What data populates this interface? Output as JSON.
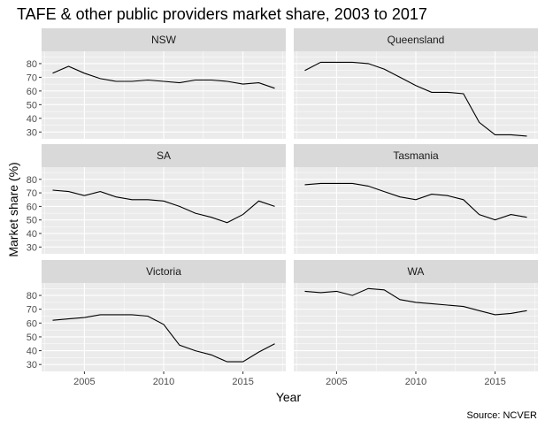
{
  "chart_data": {
    "type": "line",
    "title": "TAFE & other public providers market share, 2003 to 2017",
    "xlabel": "Year",
    "ylabel": "Market share (%)",
    "caption": "Source: NCVER",
    "xlim": [
      2002.3,
      2017.7
    ],
    "ylim": [
      25,
      89
    ],
    "x_ticks": [
      2005,
      2010,
      2015
    ],
    "y_ticks": [
      30,
      40,
      50,
      60,
      70,
      80
    ],
    "grid": true,
    "x": [
      2003,
      2004,
      2005,
      2006,
      2007,
      2008,
      2009,
      2010,
      2011,
      2012,
      2013,
      2014,
      2015,
      2016,
      2017
    ],
    "series": [
      {
        "name": "NSW",
        "values": [
          73,
          78,
          73,
          69,
          67,
          67,
          68,
          67,
          66,
          68,
          68,
          67,
          65,
          66,
          62
        ]
      },
      {
        "name": "Queensland",
        "values": [
          75,
          81,
          81,
          81,
          80,
          76,
          70,
          64,
          59,
          59,
          58,
          37,
          28,
          28,
          27
        ]
      },
      {
        "name": "SA",
        "values": [
          72,
          71,
          68,
          71,
          67,
          65,
          65,
          64,
          60,
          55,
          52,
          48,
          54,
          64,
          60
        ]
      },
      {
        "name": "Tasmania",
        "values": [
          76,
          77,
          77,
          77,
          75,
          71,
          67,
          65,
          69,
          68,
          65,
          54,
          50,
          54,
          52
        ]
      },
      {
        "name": "Victoria",
        "values": [
          62,
          63,
          64,
          66,
          66,
          66,
          65,
          59,
          44,
          40,
          37,
          32,
          32,
          39,
          45
        ]
      },
      {
        "name": "WA",
        "values": [
          83,
          82,
          83,
          80,
          85,
          84,
          77,
          75,
          74,
          73,
          72,
          69,
          66,
          67,
          69
        ]
      }
    ]
  }
}
